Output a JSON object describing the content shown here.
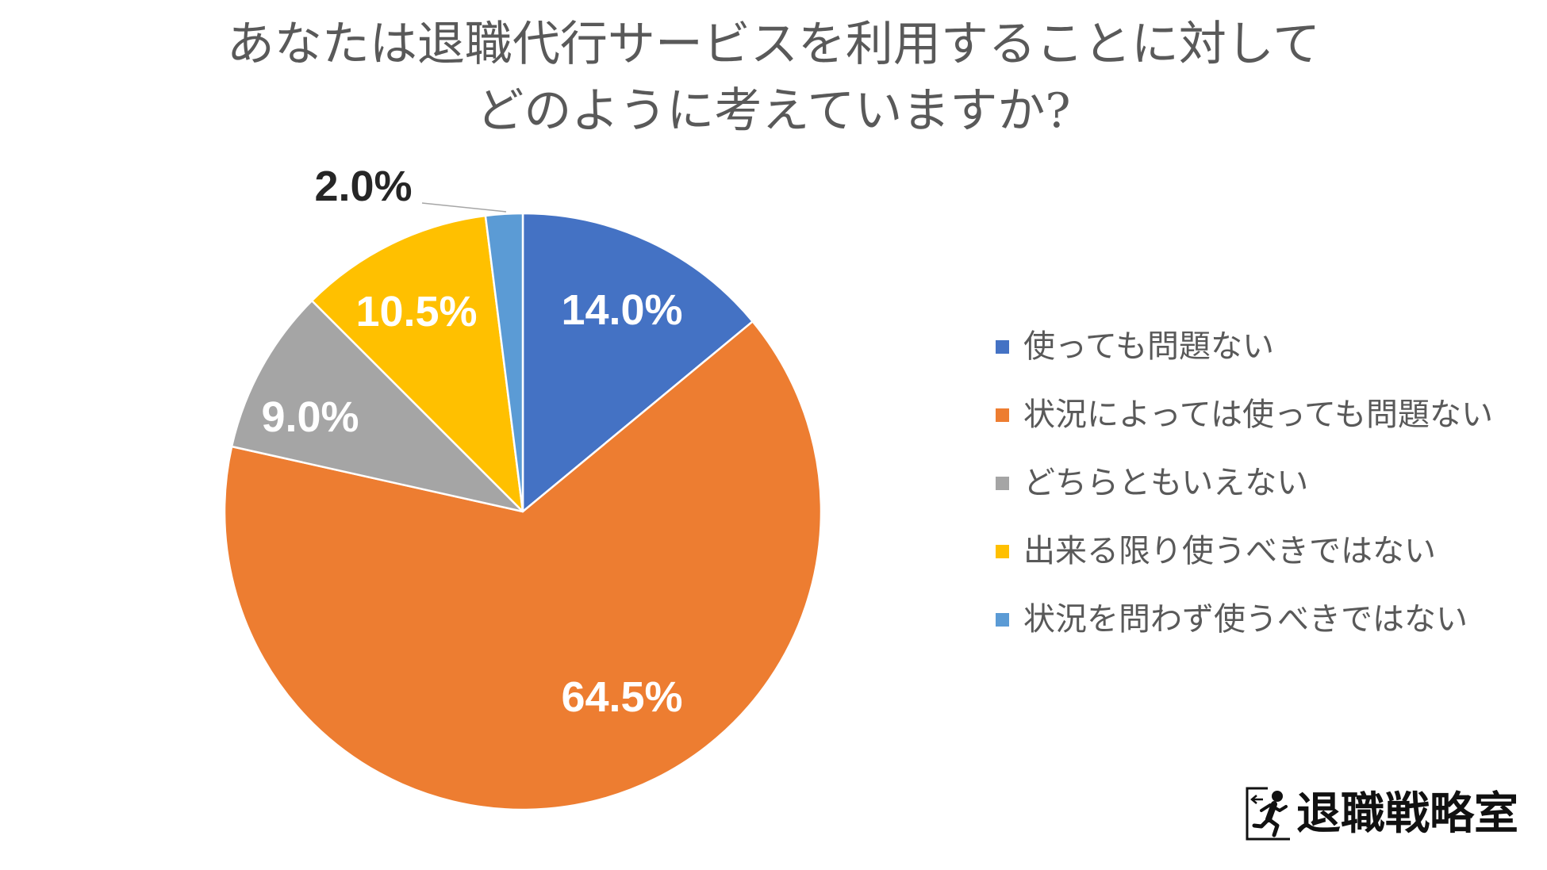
{
  "chart_data": {
    "type": "pie",
    "title_lines": [
      "あなたは退職代行サービスを利用することに対して",
      "どのように考えていますか?"
    ],
    "categories": [
      "使っても問題ない",
      "状況によっては使っても問題ない",
      "どちらともいえない",
      "出来る限り使うべきではない",
      "状況を問わず使うべきではない"
    ],
    "values": [
      14.0,
      64.5,
      9.0,
      10.5,
      2.0
    ],
    "labels": [
      "14.0%",
      "64.5%",
      "9.0%",
      "10.5%",
      "2.0%"
    ],
    "colors": [
      "#4472C4",
      "#ED7D31",
      "#A5A5A5",
      "#FFC000",
      "#5B9BD5"
    ],
    "legend": "right"
  },
  "logo": {
    "text": "退職戦略室"
  }
}
